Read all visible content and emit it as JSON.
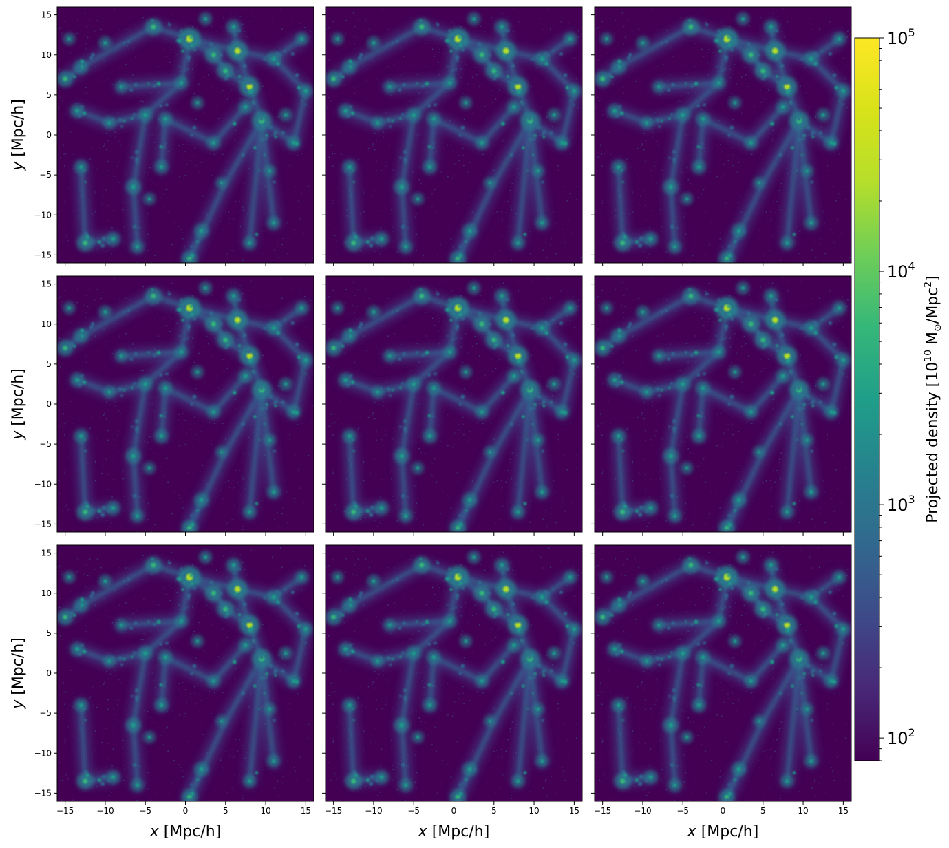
{
  "chart_data": {
    "type": "heatmap",
    "layout": {
      "rows": 3,
      "cols": 3
    },
    "x": {
      "label": "x [Mpc/h]",
      "lim": [
        -16,
        16
      ],
      "ticks": [
        -15,
        -10,
        -5,
        0,
        5,
        10,
        15
      ]
    },
    "y": {
      "label": "y [Mpc/h]",
      "lim": [
        -16,
        16
      ],
      "ticks": [
        -15,
        -10,
        -5,
        0,
        5,
        10,
        15
      ]
    },
    "colorbar": {
      "label": "Projected density [10^10 M⊙/Mpc^2]",
      "scale": "log",
      "colormap": "viridis",
      "lim": [
        80,
        100000
      ],
      "ticks": [
        100,
        1000,
        10000,
        100000
      ],
      "tick_labels": [
        {
          "base": "10",
          "exp": "2"
        },
        {
          "base": "10",
          "exp": "3"
        },
        {
          "base": "10",
          "exp": "4"
        },
        {
          "base": "10",
          "exp": "5"
        }
      ]
    },
    "features": {
      "halos": [
        [
          0.5,
          12.0,
          1.0
        ],
        [
          6.5,
          10.5,
          0.85
        ],
        [
          8.0,
          6.0,
          0.85
        ],
        [
          9.5,
          1.8,
          0.8
        ],
        [
          3.5,
          10.0,
          0.6
        ],
        [
          5.0,
          8.0,
          0.6
        ],
        [
          -4.0,
          13.5,
          0.6
        ],
        [
          -15.0,
          7.0,
          0.55
        ],
        [
          -12.5,
          -13.5,
          0.6
        ],
        [
          0.5,
          -15.5,
          0.55
        ],
        [
          -6.5,
          -6.5,
          0.5
        ],
        [
          -13.0,
          8.5,
          0.45
        ],
        [
          11.0,
          9.5,
          0.45
        ],
        [
          -5.0,
          2.5,
          0.45
        ],
        [
          -2.5,
          2.0,
          0.4
        ],
        [
          -13.5,
          3.0,
          0.4
        ],
        [
          13.5,
          -1.0,
          0.4
        ],
        [
          15.0,
          5.5,
          0.4
        ],
        [
          -3.0,
          -4.0,
          0.4
        ],
        [
          2.0,
          -12.0,
          0.45
        ],
        [
          11.0,
          -11.0,
          0.35
        ],
        [
          -9.0,
          -13.0,
          0.4
        ],
        [
          -13.0,
          -4.0,
          0.4
        ],
        [
          8.0,
          -13.5,
          0.35
        ],
        [
          6.0,
          13.5,
          0.4
        ],
        [
          14.5,
          12.0,
          0.35
        ],
        [
          -10.0,
          11.5,
          0.35
        ],
        [
          -0.5,
          6.5,
          0.35
        ],
        [
          -8.0,
          6.0,
          0.3
        ],
        [
          3.5,
          -1.0,
          0.35
        ],
        [
          -4.5,
          -8.0,
          0.3
        ],
        [
          12.5,
          2.5,
          0.35
        ],
        [
          -6.0,
          -14.0,
          0.35
        ],
        [
          7.5,
          3.5,
          0.4
        ],
        [
          1.5,
          4.0,
          0.3
        ],
        [
          -9.5,
          1.5,
          0.3
        ],
        [
          4.5,
          -6.0,
          0.25
        ],
        [
          10.5,
          -4.5,
          0.3
        ],
        [
          -14.5,
          12.0,
          0.3
        ],
        [
          2.5,
          14.5,
          0.35
        ]
      ],
      "filaments": [
        [
          0.5,
          12.0,
          6.5,
          10.5
        ],
        [
          6.5,
          10.5,
          8.0,
          6.0
        ],
        [
          8.0,
          6.0,
          9.5,
          1.8
        ],
        [
          0.5,
          12.0,
          3.5,
          10.0
        ],
        [
          3.5,
          10.0,
          5.0,
          8.0
        ],
        [
          5.0,
          8.0,
          8.0,
          6.0
        ],
        [
          9.5,
          1.8,
          13.5,
          -1.0
        ],
        [
          9.5,
          1.8,
          5.0,
          -6.0
        ],
        [
          5.0,
          -6.0,
          0.5,
          -15.5
        ],
        [
          9.5,
          1.8,
          11.0,
          -11.0
        ],
        [
          9.5,
          1.8,
          8.0,
          -13.5
        ],
        [
          -15.0,
          7.0,
          -13.0,
          8.5
        ],
        [
          -13.0,
          8.5,
          -4.0,
          13.5
        ],
        [
          -4.0,
          13.5,
          0.5,
          12.0
        ],
        [
          0.5,
          12.0,
          -0.5,
          6.5
        ],
        [
          -0.5,
          6.5,
          -5.0,
          2.5
        ],
        [
          -5.0,
          2.5,
          -9.5,
          1.5
        ],
        [
          -9.5,
          1.5,
          -13.5,
          3.0
        ],
        [
          -2.5,
          2.0,
          3.5,
          -1.0
        ],
        [
          3.5,
          -1.0,
          7.5,
          3.5
        ],
        [
          -5.0,
          2.5,
          -6.5,
          -6.5
        ],
        [
          -6.5,
          -6.5,
          -6.0,
          -14.0
        ],
        [
          -2.5,
          2.0,
          -3.0,
          -4.0
        ],
        [
          -13.0,
          -4.0,
          -12.5,
          -13.5
        ],
        [
          -12.5,
          -13.5,
          -9.0,
          -13.0
        ],
        [
          6.5,
          10.5,
          11.0,
          9.5
        ],
        [
          11.0,
          9.5,
          15.0,
          5.5
        ],
        [
          6.5,
          10.5,
          6.0,
          13.5
        ],
        [
          11.0,
          9.5,
          14.5,
          12.0
        ],
        [
          -0.5,
          6.5,
          -8.0,
          6.0
        ],
        [
          13.5,
          -1.0,
          15.0,
          5.5
        ],
        [
          0.5,
          -15.5,
          2.0,
          -12.0
        ]
      ]
    }
  }
}
